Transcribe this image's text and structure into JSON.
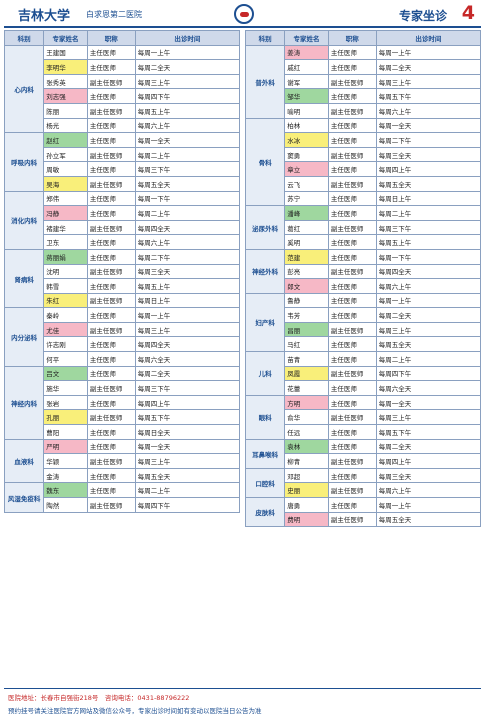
{
  "header": {
    "brand": "吉林大学",
    "hospital": "白求恩第二医院",
    "title": "专家坐诊",
    "page": "4"
  },
  "columns_head": [
    "科别",
    "专家姓名",
    "职称",
    "出诊时间"
  ],
  "columns": [
    {
      "departments": [
        {
          "name": "心内科",
          "rows": [
            [
              "王建国",
              "主任医师",
              "每周一上午"
            ],
            [
              "李明华",
              "主任医师",
              "每周二全天"
            ],
            [
              "张秀英",
              "副主任医师",
              "每周三上午"
            ],
            [
              "刘志强",
              "主任医师",
              "每周四下午"
            ],
            [
              "陈丽",
              "副主任医师",
              "每周五上午"
            ],
            [
              "杨光",
              "主任医师",
              "每周六上午"
            ]
          ]
        },
        {
          "name": "呼吸内科",
          "rows": [
            [
              "赵红",
              "主任医师",
              "每周一全天"
            ],
            [
              "孙立军",
              "副主任医师",
              "每周二上午"
            ],
            [
              "周敏",
              "主任医师",
              "每周三下午"
            ],
            [
              "吴海",
              "副主任医师",
              "每周五全天"
            ]
          ]
        },
        {
          "name": "消化内科",
          "rows": [
            [
              "郑伟",
              "主任医师",
              "每周一下午"
            ],
            [
              "冯静",
              "主任医师",
              "每周二上午"
            ],
            [
              "褚建华",
              "副主任医师",
              "每周四全天"
            ],
            [
              "卫东",
              "主任医师",
              "每周六上午"
            ]
          ]
        },
        {
          "name": "肾病科",
          "rows": [
            [
              "蒋丽娟",
              "主任医师",
              "每周二下午"
            ],
            [
              "沈明",
              "副主任医师",
              "每周三全天"
            ],
            [
              "韩雪",
              "主任医师",
              "每周五上午"
            ],
            [
              "朱红",
              "副主任医师",
              "每周日上午"
            ]
          ]
        },
        {
          "name": "内分泌科",
          "rows": [
            [
              "秦岭",
              "主任医师",
              "每周一上午"
            ],
            [
              "尤佳",
              "副主任医师",
              "每周三上午"
            ],
            [
              "许志刚",
              "主任医师",
              "每周四全天"
            ],
            [
              "何平",
              "主任医师",
              "每周六全天"
            ]
          ]
        },
        {
          "name": "神经内科",
          "rows": [
            [
              "吕文",
              "主任医师",
              "每周二全天"
            ],
            [
              "施华",
              "副主任医师",
              "每周三下午"
            ],
            [
              "张岩",
              "主任医师",
              "每周四上午"
            ],
            [
              "孔丽",
              "副主任医师",
              "每周五下午"
            ],
            [
              "曹阳",
              "主任医师",
              "每周日全天"
            ]
          ]
        },
        {
          "name": "血液科",
          "rows": [
            [
              "严明",
              "主任医师",
              "每周一全天"
            ],
            [
              "华颖",
              "副主任医师",
              "每周三上午"
            ],
            [
              "金涛",
              "主任医师",
              "每周五全天"
            ]
          ]
        },
        {
          "name": "风湿免疫科",
          "rows": [
            [
              "魏东",
              "主任医师",
              "每周二上午"
            ],
            [
              "陶然",
              "副主任医师",
              "每周四下午"
            ]
          ]
        }
      ]
    },
    {
      "departments": [
        {
          "name": "普外科",
          "rows": [
            [
              "姜涛",
              "主任医师",
              "每周一上午"
            ],
            [
              "戚红",
              "主任医师",
              "每周二全天"
            ],
            [
              "谢军",
              "副主任医师",
              "每周三上午"
            ],
            [
              "邹华",
              "主任医师",
              "每周五下午"
            ],
            [
              "喻明",
              "副主任医师",
              "每周六上午"
            ]
          ]
        },
        {
          "name": "骨科",
          "rows": [
            [
              "柏林",
              "主任医师",
              "每周一全天"
            ],
            [
              "水冰",
              "主任医师",
              "每周二下午"
            ],
            [
              "窦勇",
              "副主任医师",
              "每周三全天"
            ],
            [
              "章立",
              "主任医师",
              "每周四上午"
            ],
            [
              "云飞",
              "副主任医师",
              "每周五全天"
            ],
            [
              "苏宁",
              "主任医师",
              "每周日上午"
            ]
          ]
        },
        {
          "name": "泌尿外科",
          "rows": [
            [
              "潘峰",
              "主任医师",
              "每周二上午"
            ],
            [
              "葛红",
              "副主任医师",
              "每周三下午"
            ],
            [
              "奚明",
              "主任医师",
              "每周五上午"
            ]
          ]
        },
        {
          "name": "神经外科",
          "rows": [
            [
              "范建",
              "主任医师",
              "每周一下午"
            ],
            [
              "彭亮",
              "副主任医师",
              "每周四全天"
            ],
            [
              "郎文",
              "主任医师",
              "每周六上午"
            ]
          ]
        },
        {
          "name": "妇产科",
          "rows": [
            [
              "鲁静",
              "主任医师",
              "每周一上午"
            ],
            [
              "韦芳",
              "主任医师",
              "每周二全天"
            ],
            [
              "昌丽",
              "副主任医师",
              "每周三上午"
            ],
            [
              "马红",
              "主任医师",
              "每周五全天"
            ]
          ]
        },
        {
          "name": "儿科",
          "rows": [
            [
              "苗青",
              "主任医师",
              "每周二上午"
            ],
            [
              "凤霞",
              "副主任医师",
              "每周四下午"
            ],
            [
              "花蕾",
              "主任医师",
              "每周六全天"
            ]
          ]
        },
        {
          "name": "眼科",
          "rows": [
            [
              "方明",
              "主任医师",
              "每周一全天"
            ],
            [
              "俞华",
              "副主任医师",
              "每周三上午"
            ],
            [
              "任远",
              "主任医师",
              "每周五下午"
            ]
          ]
        },
        {
          "name": "耳鼻喉科",
          "rows": [
            [
              "袁林",
              "主任医师",
              "每周二全天"
            ],
            [
              "柳青",
              "副主任医师",
              "每周四上午"
            ]
          ]
        },
        {
          "name": "口腔科",
          "rows": [
            [
              "邓超",
              "主任医师",
              "每周三全天"
            ],
            [
              "史丽",
              "副主任医师",
              "每周六上午"
            ]
          ]
        },
        {
          "name": "皮肤科",
          "rows": [
            [
              "唐勇",
              "主任医师",
              "每周一上午"
            ],
            [
              "费明",
              "副主任医师",
              "每周五全天"
            ]
          ]
        }
      ]
    }
  ],
  "footer": {
    "line1": "医院地址：长春市自强街218号　咨询电话：0431-88796222",
    "line2": "预约挂号请关注医院官方网站及微信公众号，专家出诊时间如有变动以医院当日公告为准"
  }
}
